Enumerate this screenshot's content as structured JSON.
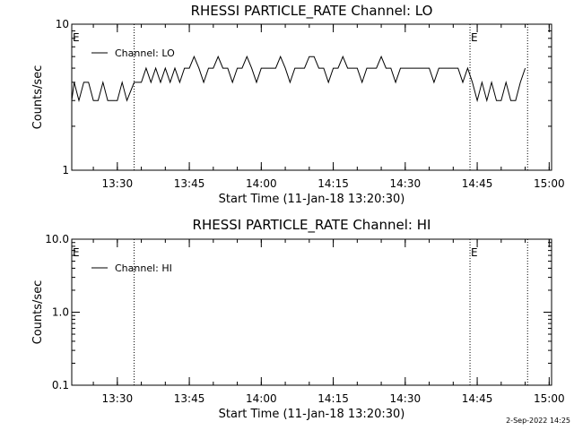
{
  "footer_timestamp": "2-Sep-2022 14:25",
  "chart_data": [
    {
      "type": "line",
      "title": "RHESSI PARTICLE_RATE Channel: LO",
      "xlabel": "Start Time (11-Jan-18 13:20:30)",
      "ylabel": "Counts/sec",
      "yscale": "log",
      "xlim": [
        "13:20:30",
        "15:00:30"
      ],
      "ylim": [
        1,
        10
      ],
      "x_ticks": [
        "13:30",
        "13:45",
        "14:00",
        "14:15",
        "14:30",
        "14:45",
        "15:00"
      ],
      "y_ticks": [
        "1",
        "10"
      ],
      "markers": [
        {
          "x": "13:20:30",
          "label": "E"
        },
        {
          "x": "13:33:30",
          "label": ""
        },
        {
          "x": "14:43:30",
          "label": "E"
        },
        {
          "x": "14:55:30",
          "label": ""
        }
      ],
      "legend": {
        "position": "top-left",
        "entries": [
          "Channel: LO"
        ]
      },
      "series": [
        {
          "name": "Channel: LO",
          "x": [
            "13:20:30",
            "13:21:00",
            "13:22:00",
            "13:23:00",
            "13:24:00",
            "13:25:00",
            "13:26:00",
            "13:27:00",
            "13:28:00",
            "13:29:00",
            "13:30:00",
            "13:31:00",
            "13:32:00",
            "13:33:30",
            "13:34:00",
            "13:35:00",
            "13:36:00",
            "13:37:00",
            "13:38:00",
            "13:39:00",
            "13:40:00",
            "13:41:00",
            "13:42:00",
            "13:43:00",
            "13:44:00",
            "13:45:00",
            "13:46:00",
            "13:47:00",
            "13:48:00",
            "13:49:00",
            "13:50:00",
            "13:51:00",
            "13:52:00",
            "13:53:00",
            "13:54:00",
            "13:55:00",
            "13:56:00",
            "13:57:00",
            "13:58:00",
            "13:59:00",
            "14:00:00",
            "14:01:00",
            "14:02:00",
            "14:03:00",
            "14:04:00",
            "14:05:00",
            "14:06:00",
            "14:07:00",
            "14:08:00",
            "14:09:00",
            "14:10:00",
            "14:11:00",
            "14:12:00",
            "14:13:00",
            "14:14:00",
            "14:15:00",
            "14:16:00",
            "14:17:00",
            "14:18:00",
            "14:19:00",
            "14:20:00",
            "14:21:00",
            "14:22:00",
            "14:23:00",
            "14:24:00",
            "14:25:00",
            "14:26:00",
            "14:27:00",
            "14:28:00",
            "14:29:00",
            "14:30:00",
            "14:31:00",
            "14:32:00",
            "14:33:00",
            "14:34:00",
            "14:35:00",
            "14:36:00",
            "14:37:00",
            "14:38:00",
            "14:39:00",
            "14:40:00",
            "14:41:00",
            "14:42:00",
            "14:43:00",
            "14:44:00",
            "14:45:00",
            "14:46:00",
            "14:47:00",
            "14:48:00",
            "14:49:00",
            "14:50:00",
            "14:51:00",
            "14:52:00",
            "14:53:00",
            "14:54:00",
            "14:55:00"
          ],
          "y": [
            3,
            4,
            3,
            4,
            4,
            3,
            3,
            4,
            3,
            3,
            3,
            4,
            3,
            4,
            4,
            4,
            5,
            4,
            5,
            4,
            5,
            4,
            5,
            4,
            5,
            5,
            6,
            5,
            4,
            5,
            5,
            6,
            5,
            5,
            4,
            5,
            5,
            6,
            5,
            4,
            5,
            5,
            5,
            5,
            6,
            5,
            4,
            5,
            5,
            5,
            6,
            6,
            5,
            5,
            4,
            5,
            5,
            6,
            5,
            5,
            5,
            4,
            5,
            5,
            5,
            6,
            5,
            5,
            4,
            5,
            5,
            5,
            5,
            5,
            5,
            5,
            4,
            5,
            5,
            5,
            5,
            5,
            4,
            5,
            4,
            3,
            4,
            3,
            4,
            3,
            3,
            4,
            3,
            3,
            4,
            5
          ]
        }
      ]
    },
    {
      "type": "line",
      "title": "RHESSI PARTICLE_RATE Channel: HI",
      "xlabel": "Start Time (11-Jan-18 13:20:30)",
      "ylabel": "Counts/sec",
      "yscale": "log",
      "xlim": [
        "13:20:30",
        "15:00:30"
      ],
      "ylim": [
        0.1,
        10.0
      ],
      "x_ticks": [
        "13:30",
        "13:45",
        "14:00",
        "14:15",
        "14:30",
        "14:45",
        "15:00"
      ],
      "y_ticks": [
        "0.1",
        "1.0",
        "10.0"
      ],
      "markers": [
        {
          "x": "13:20:30",
          "label": "E"
        },
        {
          "x": "13:33:30",
          "label": ""
        },
        {
          "x": "14:43:30",
          "label": "E"
        },
        {
          "x": "14:55:30",
          "label": ""
        }
      ],
      "legend": {
        "position": "top-left",
        "entries": [
          "Channel: HI"
        ]
      },
      "series": [
        {
          "name": "Channel: HI",
          "x": [],
          "y": []
        }
      ]
    }
  ]
}
